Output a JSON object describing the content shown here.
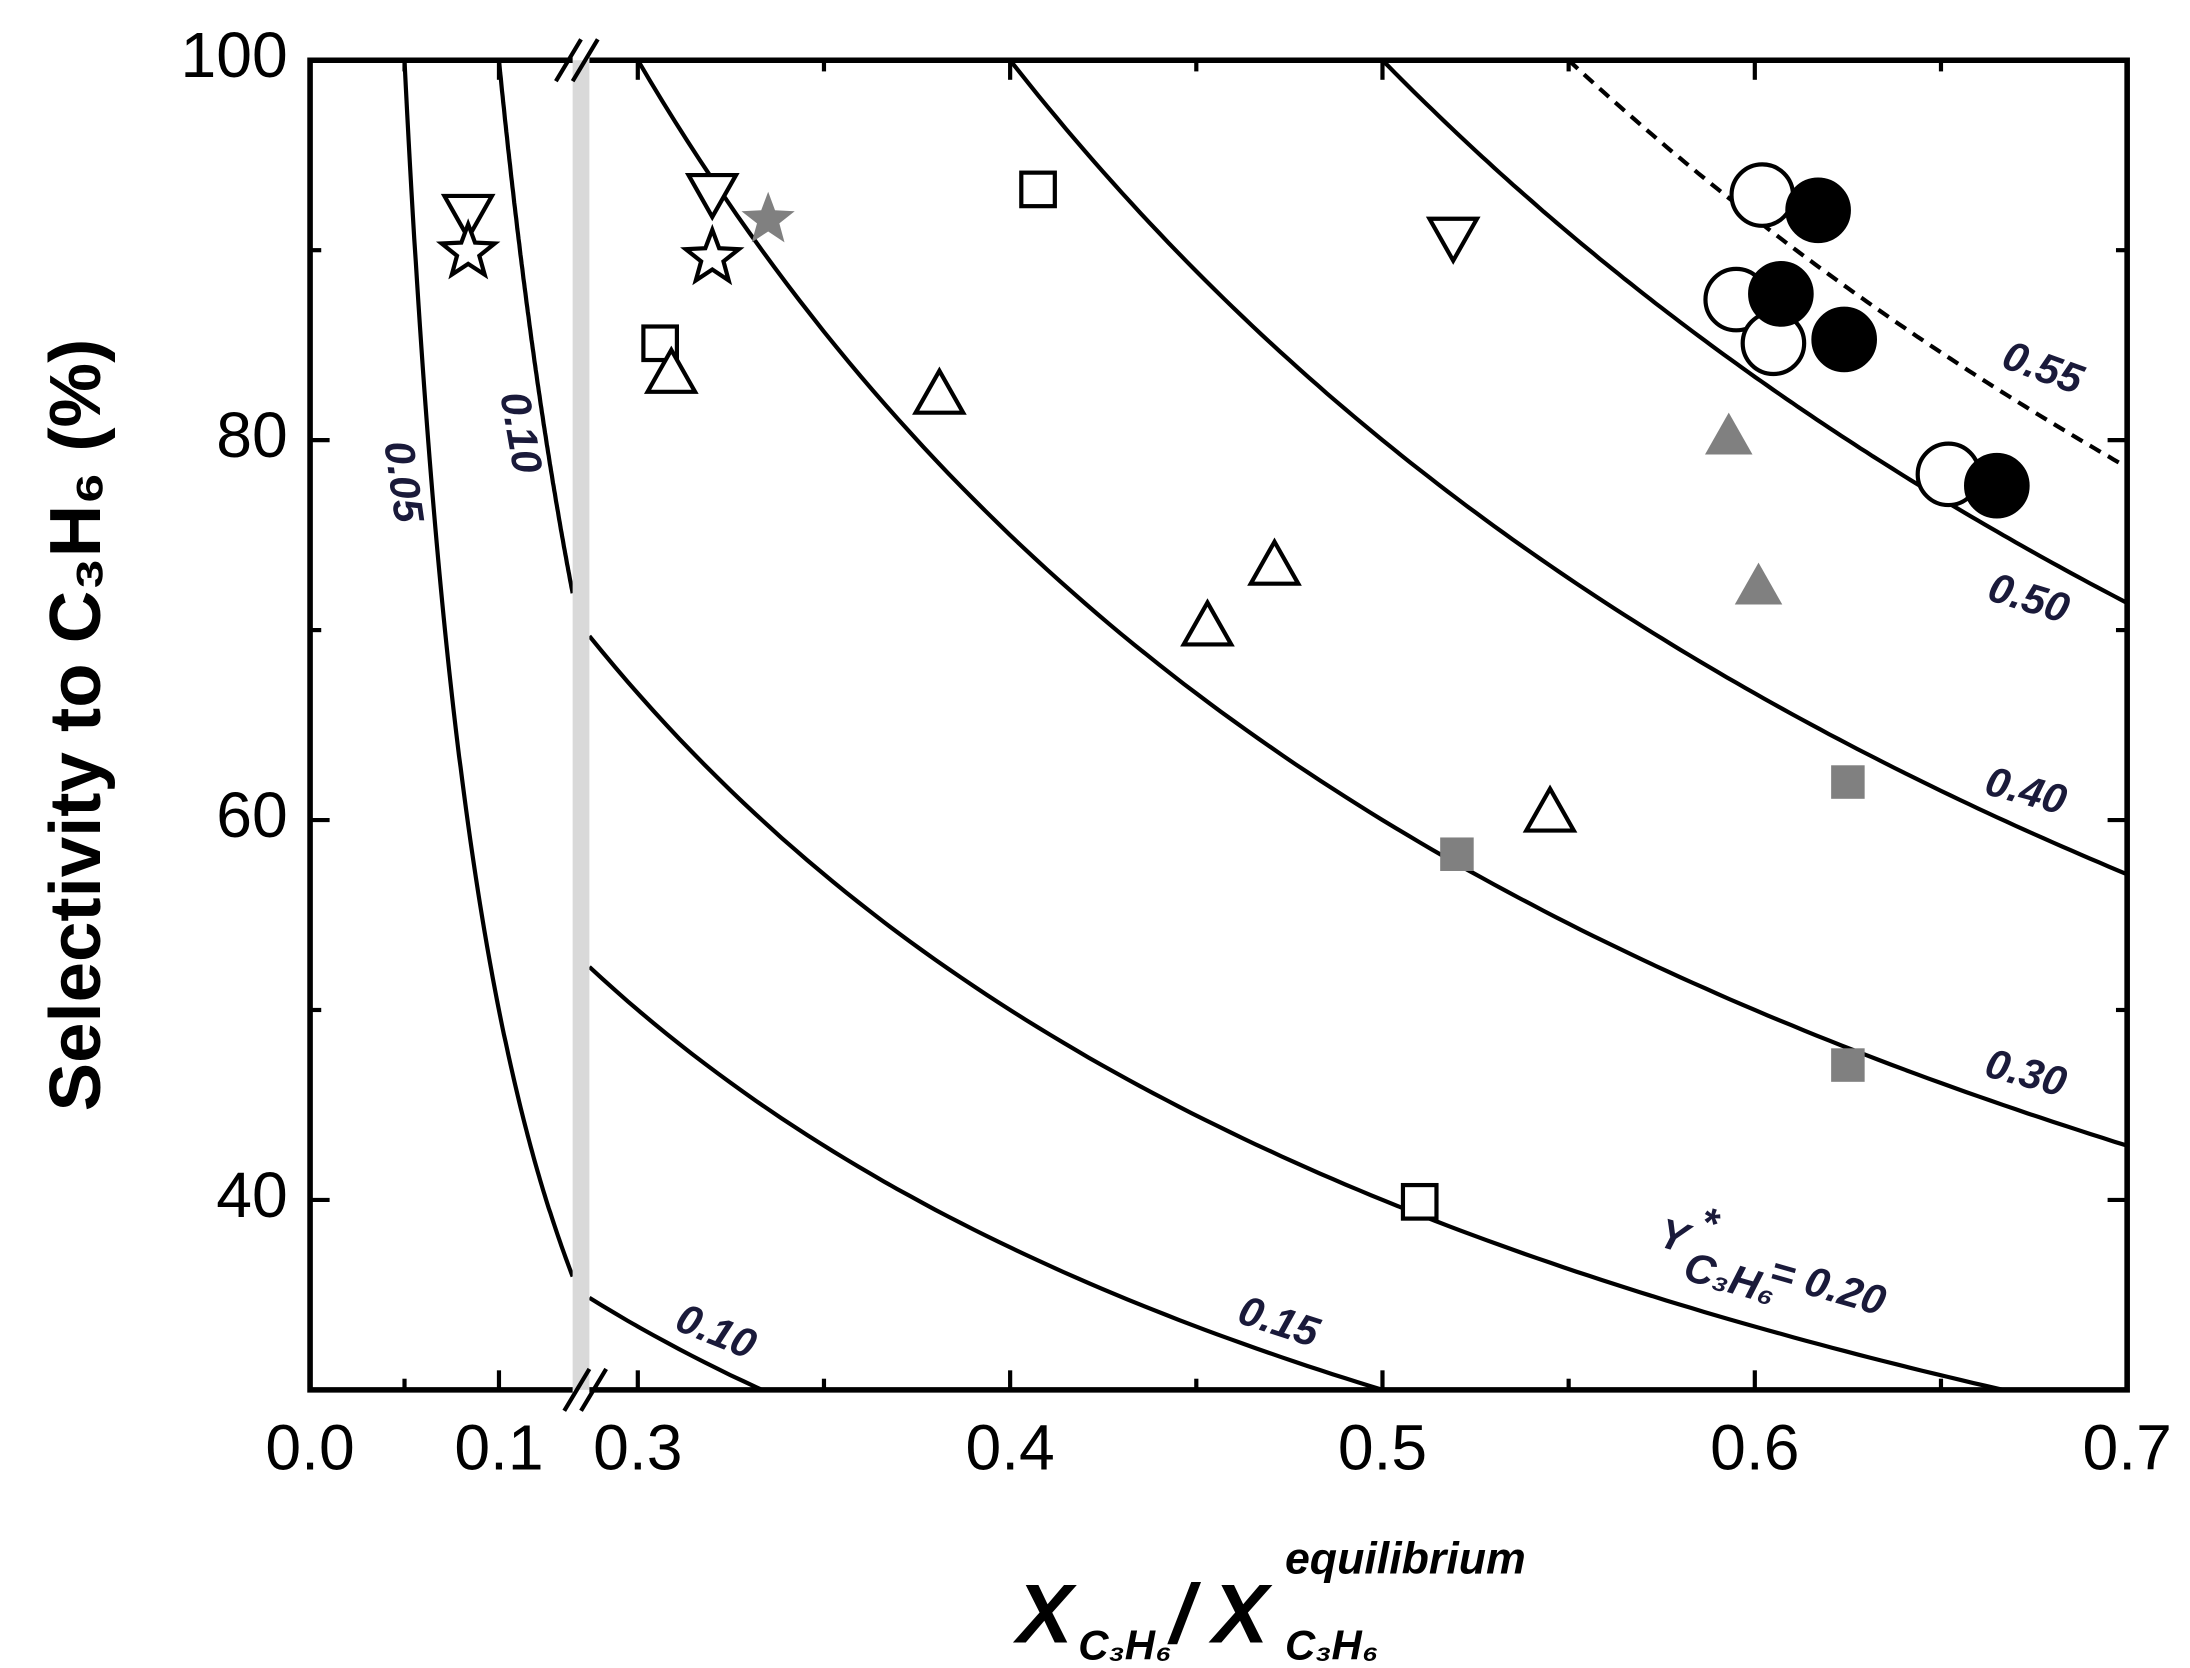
{
  "chart_data": {
    "type": "scatter",
    "ylabel": "Selectivity to C₃H₆ (%)",
    "xlabel": {
      "symbol": "X",
      "sub": "C₃H₆",
      "separator": "/",
      "symbol2": "X",
      "sup": "equilibrium",
      "sub2": "C₃H₆"
    },
    "ylim": [
      30,
      100
    ],
    "yticks": [
      40,
      60,
      80,
      100
    ],
    "yminorticks": [
      50,
      70,
      90
    ],
    "x_segments": [
      {
        "xlim": [
          0,
          0.139
        ],
        "xticks": [
          {
            "value": 0,
            "label": "0.0"
          },
          {
            "value": 0.1,
            "label": "0.1"
          }
        ],
        "xminorticks": [
          0.05
        ]
      },
      {
        "xlim": [
          0.287,
          0.7
        ],
        "xticks": [
          0.3,
          0.4,
          0.5,
          0.6,
          0.7
        ],
        "xminorticks": [
          0.35,
          0.45,
          0.55,
          0.65
        ]
      }
    ],
    "contours": [
      {
        "value": 0.05,
        "label": "0.05",
        "segment": "left",
        "style": "solid"
      },
      {
        "value": 0.1,
        "label": "0.10",
        "segment": "left",
        "style": "solid"
      },
      {
        "value": 0.1,
        "label": "0.10",
        "segment": "right",
        "style": "solid"
      },
      {
        "value": 0.15,
        "label": "0.15",
        "segment": "right",
        "style": "solid"
      },
      {
        "value": 0.2,
        "label": "= 0.20",
        "prefix": {
          "symbol": "Y",
          "sup": "*",
          "sub": "C₃H₆"
        },
        "segment": "right",
        "style": "solid"
      },
      {
        "value": 0.3,
        "label": "0.30",
        "segment": "right",
        "style": "solid"
      },
      {
        "value": 0.4,
        "label": "0.40",
        "segment": "right",
        "style": "solid"
      },
      {
        "value": 0.5,
        "label": "0.50",
        "segment": "right",
        "style": "solid"
      },
      {
        "value": 0.55,
        "label": "0.55",
        "segment": "right",
        "style": "dashed"
      }
    ],
    "series": [
      {
        "marker": "triangle-down",
        "color": "#000000",
        "filled": false,
        "x": [
          0.0837,
          0.32,
          0.519
        ],
        "values": [
          91.9,
          93.0,
          90.7
        ]
      },
      {
        "marker": "star",
        "color": "#000000",
        "filled": false,
        "x": [
          0.0837,
          0.32
        ],
        "values": [
          89.9,
          89.6
        ]
      },
      {
        "marker": "star",
        "color": "#808080",
        "filled": true,
        "x": [
          0.335
        ],
        "values": [
          91.6
        ]
      },
      {
        "marker": "square",
        "color": "#000000",
        "filled": false,
        "x": [
          0.306,
          0.4075,
          0.51
        ],
        "values": [
          85.1,
          93.2,
          39.9
        ]
      },
      {
        "marker": "triangle-up",
        "color": "#000000",
        "filled": false,
        "x": [
          0.309,
          0.381,
          0.453,
          0.471,
          0.545
        ],
        "values": [
          83.5,
          82.4,
          70.2,
          73.4,
          60.4
        ]
      },
      {
        "marker": "circle",
        "color": "#000000",
        "filled": false,
        "x": [
          0.602,
          0.595,
          0.605,
          0.652
        ],
        "values": [
          92.9,
          87.4,
          85.1,
          78.2
        ]
      },
      {
        "marker": "circle",
        "color": "#000000",
        "filled": true,
        "x": [
          0.617,
          0.607,
          0.624,
          0.665
        ],
        "values": [
          92.1,
          87.7,
          85.3,
          77.6
        ]
      },
      {
        "marker": "triangle-up",
        "color": "#808080",
        "filled": true,
        "x": [
          0.593,
          0.601
        ],
        "values": [
          80.2,
          72.3
        ]
      },
      {
        "marker": "square",
        "color": "#808080",
        "filled": true,
        "x": [
          0.52,
          0.625,
          0.625
        ],
        "values": [
          58.2,
          62,
          47.1
        ]
      }
    ]
  }
}
